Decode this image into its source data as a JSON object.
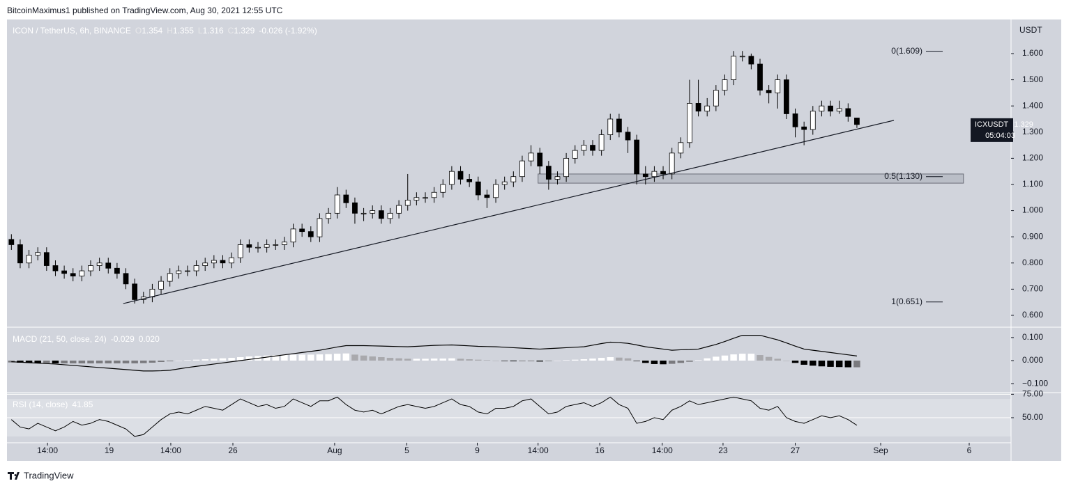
{
  "header": {
    "text": "BitcoinMaximus1 published on TradingView.com, Aug 30, 2021 12:55 UTC"
  },
  "footer": {
    "text": "TradingView"
  },
  "chart_data": [
    {
      "type": "candlestick",
      "title": "ICON / TetherUS, 6h, BINANCE",
      "ohlc_legend": [
        {
          "label": "O",
          "value": "1.354"
        },
        {
          "label": "H",
          "value": "1.355"
        },
        {
          "label": "L",
          "value": "1.316"
        },
        {
          "label": "C",
          "value": "1.329"
        }
      ],
      "change": "-0.026 (-1.92%)",
      "currency": "USDT",
      "symbol": "ICXUSDT",
      "last_price": "1.329",
      "countdown": "05:04:03",
      "up_color": "#ffffff",
      "down_color": "#000000",
      "xlim": [
        0,
        114
      ],
      "xticks": [
        {
          "value": 4.6,
          "label": "14:00"
        },
        {
          "value": 11.6,
          "label": "19"
        },
        {
          "value": 18.6,
          "label": "14:00"
        },
        {
          "value": 25.65,
          "label": "26"
        },
        {
          "value": 37.2,
          "label": "Aug"
        },
        {
          "value": 45.4,
          "label": "5"
        },
        {
          "value": 53.4,
          "label": "9"
        },
        {
          "value": 60.3,
          "label": "14:00"
        },
        {
          "value": 67.3,
          "label": "16"
        },
        {
          "value": 74.4,
          "label": "14:00"
        },
        {
          "value": 81.3,
          "label": "23"
        },
        {
          "value": 89.5,
          "label": "27"
        },
        {
          "value": 99.2,
          "label": "Sep"
        },
        {
          "value": 109.25,
          "label": "6"
        }
      ],
      "ylim": [
        0.56,
        1.725
      ],
      "yticks": [
        {
          "value": 0.6,
          "label": "0.600"
        },
        {
          "value": 0.7,
          "label": "0.700"
        },
        {
          "value": 0.8,
          "label": "0.800"
        },
        {
          "value": 0.9,
          "label": "0.900"
        },
        {
          "value": 1.0,
          "label": "1.000"
        },
        {
          "value": 1.1,
          "label": "1.100"
        },
        {
          "value": 1.2,
          "label": "1.200"
        },
        {
          "value": 1.3,
          "label": "1.300"
        },
        {
          "value": 1.4,
          "label": "1.400"
        },
        {
          "value": 1.5,
          "label": "1.500"
        },
        {
          "value": 1.6,
          "label": "1.600"
        }
      ],
      "open": [
        0.89,
        0.87,
        0.8,
        0.83,
        0.84,
        0.79,
        0.77,
        0.76,
        0.75,
        0.77,
        0.79,
        0.8,
        0.78,
        0.76,
        0.72,
        0.66,
        0.67,
        0.7,
        0.73,
        0.76,
        0.77,
        0.77,
        0.79,
        0.8,
        0.81,
        0.8,
        0.82,
        0.87,
        0.86,
        0.86,
        0.87,
        0.87,
        0.88,
        0.93,
        0.92,
        0.9,
        0.97,
        0.99,
        1.06,
        1.03,
        0.99,
        0.99,
        1.0,
        0.97,
        0.99,
        1.02,
        1.04,
        1.05,
        1.05,
        1.07,
        1.1,
        1.15,
        1.12,
        1.11,
        1.06,
        1.05,
        1.1,
        1.11,
        1.13,
        1.19,
        1.22,
        1.17,
        1.12,
        1.13,
        1.2,
        1.23,
        1.25,
        1.23,
        1.29,
        1.35,
        1.3,
        1.27,
        1.14,
        1.13,
        1.15,
        1.14,
        1.22,
        1.26,
        1.41,
        1.38,
        1.4,
        1.46,
        1.5,
        1.59,
        1.59,
        1.56,
        1.46,
        1.45,
        1.5,
        1.37,
        1.32,
        1.31,
        1.38,
        1.4,
        1.38,
        1.39,
        1.354
      ],
      "high": [
        0.91,
        0.89,
        0.85,
        0.86,
        0.86,
        0.81,
        0.79,
        0.78,
        0.79,
        0.81,
        0.82,
        0.82,
        0.8,
        0.78,
        0.74,
        0.69,
        0.72,
        0.75,
        0.78,
        0.79,
        0.79,
        0.81,
        0.82,
        0.83,
        0.83,
        0.84,
        0.89,
        0.89,
        0.88,
        0.89,
        0.89,
        0.9,
        0.95,
        0.95,
        0.94,
        0.99,
        1.01,
        1.09,
        1.08,
        1.05,
        1.01,
        1.02,
        1.02,
        1.01,
        1.04,
        1.14,
        1.07,
        1.07,
        1.09,
        1.12,
        1.17,
        1.17,
        1.14,
        1.13,
        1.08,
        1.12,
        1.13,
        1.15,
        1.21,
        1.25,
        1.24,
        1.19,
        1.15,
        1.22,
        1.25,
        1.27,
        1.27,
        1.31,
        1.37,
        1.37,
        1.32,
        1.29,
        1.17,
        1.17,
        1.17,
        1.24,
        1.28,
        1.5,
        1.5,
        1.43,
        1.48,
        1.52,
        1.61,
        1.61,
        1.6,
        1.58,
        1.48,
        1.52,
        1.52,
        1.39,
        1.34,
        1.4,
        1.42,
        1.42,
        1.42,
        1.41,
        1.355
      ],
      "low": [
        0.85,
        0.78,
        0.78,
        0.81,
        0.77,
        0.75,
        0.74,
        0.73,
        0.73,
        0.75,
        0.77,
        0.76,
        0.74,
        0.7,
        0.645,
        0.645,
        0.65,
        0.68,
        0.71,
        0.74,
        0.75,
        0.75,
        0.77,
        0.78,
        0.78,
        0.78,
        0.8,
        0.84,
        0.84,
        0.84,
        0.85,
        0.85,
        0.86,
        0.9,
        0.88,
        0.88,
        0.95,
        0.97,
        1.01,
        0.95,
        0.96,
        0.97,
        0.95,
        0.95,
        0.97,
        1.0,
        1.02,
        1.03,
        1.03,
        1.05,
        1.08,
        1.1,
        1.09,
        1.04,
        1.01,
        1.03,
        1.08,
        1.09,
        1.11,
        1.17,
        1.14,
        1.08,
        1.1,
        1.11,
        1.18,
        1.21,
        1.21,
        1.21,
        1.27,
        1.28,
        1.22,
        1.1,
        1.1,
        1.11,
        1.12,
        1.12,
        1.2,
        1.24,
        1.36,
        1.36,
        1.38,
        1.44,
        1.48,
        1.57,
        1.54,
        1.44,
        1.41,
        1.39,
        1.35,
        1.28,
        1.25,
        1.29,
        1.36,
        1.36,
        1.37,
        1.34,
        1.316
      ],
      "close": [
        0.87,
        0.8,
        0.83,
        0.84,
        0.79,
        0.77,
        0.76,
        0.75,
        0.77,
        0.79,
        0.8,
        0.78,
        0.76,
        0.72,
        0.66,
        0.67,
        0.7,
        0.73,
        0.76,
        0.77,
        0.77,
        0.79,
        0.8,
        0.81,
        0.8,
        0.82,
        0.87,
        0.86,
        0.86,
        0.87,
        0.87,
        0.88,
        0.93,
        0.92,
        0.9,
        0.97,
        0.99,
        1.06,
        1.03,
        0.99,
        0.99,
        1.0,
        0.97,
        0.99,
        1.02,
        1.04,
        1.05,
        1.05,
        1.07,
        1.1,
        1.15,
        1.12,
        1.11,
        1.06,
        1.05,
        1.1,
        1.11,
        1.13,
        1.19,
        1.22,
        1.17,
        1.12,
        1.13,
        1.2,
        1.23,
        1.25,
        1.23,
        1.29,
        1.35,
        1.3,
        1.27,
        1.14,
        1.13,
        1.15,
        1.14,
        1.22,
        1.26,
        1.41,
        1.38,
        1.4,
        1.46,
        1.5,
        1.59,
        1.59,
        1.56,
        1.46,
        1.45,
        1.5,
        1.37,
        1.32,
        1.31,
        1.38,
        1.4,
        1.38,
        1.39,
        1.36,
        1.329
      ],
      "fib_levels": [
        {
          "label": "0(1.609)",
          "value": 1.609
        },
        {
          "label": "0.5(1.130)",
          "value": 1.13
        },
        {
          "label": "1(0.651)",
          "value": 0.651
        }
      ],
      "zone": {
        "x": [
          60.3,
          108.6
        ],
        "y": [
          1.105,
          1.14
        ]
      },
      "trendline": {
        "x": [
          13.2,
          100.7
        ],
        "y": [
          0.645,
          1.345
        ]
      }
    },
    {
      "type": "macd",
      "title": "MACD (21, 50, close, 24)",
      "legend_values": [
        "-0.029",
        "0.020"
      ],
      "ylim": [
        -0.133,
        0.142
      ],
      "yticks": [
        {
          "value": 0.1,
          "label": "0.100"
        },
        {
          "value": 0.0,
          "label": "0.000"
        },
        {
          "value": -0.1,
          "label": "−0.100"
        }
      ],
      "line_color": "#000000",
      "histogram_colors": [
        "#ffffff",
        "#a9a9ad",
        "#7a7a7e",
        "#000000"
      ],
      "macd": [
        -0.005,
        -0.007,
        -0.009,
        -0.011,
        -0.013,
        -0.015,
        -0.018,
        -0.021,
        -0.024,
        -0.027,
        -0.03,
        -0.033,
        -0.036,
        -0.039,
        -0.042,
        -0.045,
        -0.045,
        -0.044,
        -0.042,
        -0.036,
        -0.03,
        -0.025,
        -0.02,
        -0.015,
        -0.01,
        -0.005,
        0.0,
        0.005,
        0.01,
        0.015,
        0.02,
        0.025,
        0.03,
        0.035,
        0.04,
        0.045,
        0.052,
        0.059,
        0.065,
        0.065,
        0.065,
        0.064,
        0.063,
        0.062,
        0.061,
        0.06,
        0.062,
        0.064,
        0.066,
        0.067,
        0.068,
        0.066,
        0.064,
        0.062,
        0.061,
        0.06,
        0.058,
        0.056,
        0.054,
        0.052,
        0.05,
        0.052,
        0.054,
        0.056,
        0.058,
        0.06,
        0.067,
        0.074,
        0.08,
        0.078,
        0.075,
        0.068,
        0.06,
        0.055,
        0.05,
        0.045,
        0.047,
        0.048,
        0.05,
        0.06,
        0.07,
        0.083,
        0.097,
        0.11,
        0.11,
        0.11,
        0.1,
        0.09,
        0.077,
        0.063,
        0.05,
        0.045,
        0.04,
        0.035,
        0.03,
        0.025,
        0.02
      ],
      "histogram": [
        -0.008,
        -0.009,
        -0.01,
        -0.011,
        -0.011,
        -0.012,
        -0.012,
        -0.012,
        -0.012,
        -0.012,
        -0.012,
        -0.012,
        -0.012,
        -0.012,
        -0.012,
        -0.011,
        -0.009,
        -0.006,
        -0.003,
        0.0,
        0.002,
        0.004,
        0.006,
        0.008,
        0.01,
        0.012,
        0.015,
        0.018,
        0.02,
        0.022,
        0.024,
        0.025,
        0.026,
        0.026,
        0.026,
        0.027,
        0.028,
        0.03,
        0.031,
        0.026,
        0.022,
        0.018,
        0.015,
        0.012,
        0.01,
        0.008,
        0.008,
        0.008,
        0.009,
        0.009,
        0.01,
        0.008,
        0.006,
        0.004,
        0.002,
        0.0,
        -0.002,
        -0.003,
        -0.003,
        -0.003,
        -0.004,
        -0.002,
        0.0,
        0.002,
        0.004,
        0.006,
        0.009,
        0.012,
        0.015,
        0.013,
        0.01,
        -0.002,
        -0.01,
        -0.015,
        -0.016,
        -0.014,
        -0.01,
        -0.005,
        0.002,
        0.01,
        0.017,
        0.022,
        0.027,
        0.03,
        0.03,
        0.024,
        0.016,
        0.008,
        0.0,
        -0.01,
        -0.018,
        -0.022,
        -0.025,
        -0.027,
        -0.028,
        -0.029,
        -0.029
      ]
    },
    {
      "type": "rsi",
      "title": "RSI (14, close)",
      "legend_value": "41.85",
      "ylim": [
        24,
        76
      ],
      "band": [
        30,
        70
      ],
      "yticks": [
        {
          "value": 75,
          "label": "75.00"
        },
        {
          "value": 50,
          "label": "50.00"
        }
      ],
      "line_color": "#000000",
      "values": [
        48,
        40,
        38,
        44,
        40,
        36,
        40,
        46,
        42,
        44,
        48,
        46,
        42,
        38,
        30,
        32,
        40,
        48,
        54,
        56,
        54,
        58,
        62,
        60,
        58,
        64,
        70,
        66,
        62,
        64,
        60,
        62,
        70,
        66,
        62,
        68,
        68,
        72,
        64,
        58,
        56,
        58,
        54,
        58,
        62,
        64,
        62,
        60,
        62,
        66,
        70,
        64,
        62,
        56,
        54,
        60,
        60,
        62,
        68,
        70,
        62,
        54,
        56,
        62,
        64,
        66,
        62,
        66,
        72,
        64,
        60,
        44,
        46,
        50,
        48,
        58,
        62,
        68,
        64,
        66,
        68,
        70,
        72,
        70,
        68,
        60,
        58,
        62,
        50,
        46,
        44,
        48,
        52,
        50,
        52,
        48,
        41.85
      ]
    }
  ]
}
